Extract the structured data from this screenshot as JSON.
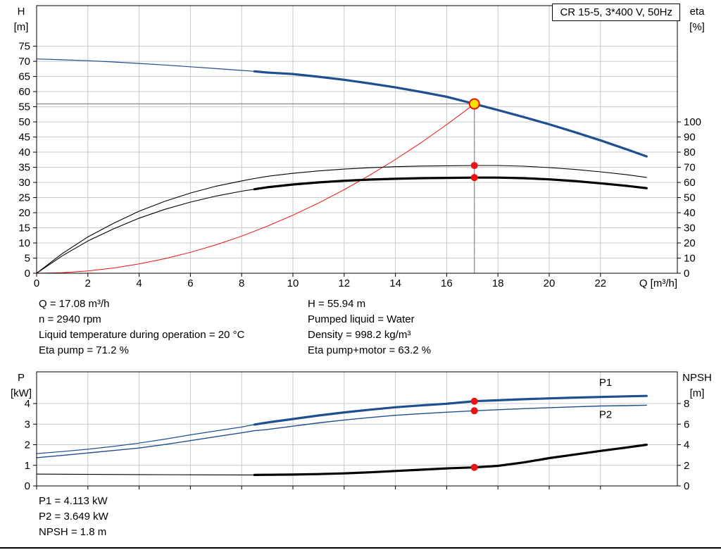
{
  "legend": {
    "label": "CR 15-5, 3*400 V, 50Hz"
  },
  "info_top": {
    "left": [
      "Q = 17.08 m³/h",
      "n = 2940 rpm",
      "Liquid temperature during operation = 20 °C",
      "Eta pump = 71.2 %"
    ],
    "right": [
      "H = 55.94 m",
      "Pumped liquid = Water",
      "Density = 998.2 kg/m³",
      "Eta pump+motor = 63.2 %"
    ]
  },
  "info_bottom": [
    "P1 = 4.113 kW",
    "P2 = 3.649 kW",
    "NPSH = 1.8 m"
  ],
  "colors": {
    "curve_blue": "#1d4f91",
    "curve_red": "#ee1111",
    "curve_black": "#000000",
    "grid": "#c9c9c9",
    "crosshair": "#8a8a8a",
    "marker_red": "#ee1111",
    "duty_point_fill": "#ffe000"
  },
  "chart_data": [
    {
      "type": "line",
      "title": "CR 15-5, 3*400 V, 50Hz",
      "xlabel": "Q [m³/h]",
      "ylabel_left": [
        "H",
        "[m]"
      ],
      "ylabel_right": [
        "eta",
        "[%]"
      ],
      "xlim": [
        0,
        25
      ],
      "ylim_left": [
        0,
        88.4
      ],
      "ylim_right": [
        0,
        176.8
      ],
      "x_ticks": [
        0,
        2,
        4,
        6,
        8,
        10,
        12,
        14,
        16,
        18,
        20,
        22
      ],
      "show_x_labels": true,
      "y_ticks_left": [
        0,
        5,
        10,
        15,
        20,
        25,
        30,
        35,
        40,
        45,
        50,
        55,
        60,
        65,
        70,
        75
      ],
      "y_ticks_right": [
        0,
        10,
        20,
        30,
        40,
        50,
        60,
        70,
        80,
        90,
        100
      ],
      "grid": true,
      "legend_position": "top-right",
      "crosshair": {
        "x": 17.08,
        "y": 55.94,
        "axis": "left"
      },
      "series": [
        {
          "name": "head-curve-thin",
          "axis": "left",
          "color": "#1d4f91",
          "width": 1.2,
          "x": [
            0,
            1,
            2,
            3,
            4,
            5,
            6,
            7,
            8,
            8.5
          ],
          "y": [
            70.8,
            70.5,
            70.2,
            69.8,
            69.3,
            68.8,
            68.2,
            67.6,
            67.0,
            66.7
          ]
        },
        {
          "name": "head-curve",
          "axis": "left",
          "color": "#1d4f91",
          "width": 3.2,
          "x": [
            8.5,
            9,
            10,
            11,
            12,
            13,
            14,
            15,
            16,
            17.08,
            18,
            19,
            20,
            21,
            22,
            23,
            23.8
          ],
          "y": [
            66.7,
            66.3,
            65.8,
            64.9,
            63.9,
            62.7,
            61.4,
            59.9,
            58.3,
            55.94,
            53.9,
            51.6,
            49.2,
            46.6,
            43.9,
            41.0,
            38.6
          ]
        },
        {
          "name": "system-curve",
          "axis": "left",
          "color": "#ee1111",
          "width": 1,
          "x": [
            0,
            1,
            2,
            3,
            4,
            5,
            6,
            7,
            8,
            9,
            10,
            11,
            12,
            13,
            14,
            15,
            16,
            17,
            17.08
          ],
          "y": [
            0,
            0.19,
            0.77,
            1.73,
            3.07,
            4.8,
            6.9,
            9.39,
            12.27,
            15.53,
            19.18,
            23.2,
            27.61,
            32.4,
            37.58,
            43.14,
            49.09,
            55.42,
            55.94
          ]
        },
        {
          "name": "eta-pump-curve",
          "axis": "right",
          "color": "#000000",
          "width": 1.1,
          "x": [
            0,
            1,
            2,
            3,
            4,
            5,
            6,
            7,
            8,
            8.5,
            9,
            10,
            11,
            12,
            13,
            14,
            15,
            16,
            17.08,
            18,
            19,
            20,
            21,
            22,
            23,
            23.8
          ],
          "y": [
            0,
            13,
            24,
            33,
            41,
            47.5,
            53,
            57.5,
            61,
            62.6,
            64,
            66,
            67.6,
            68.8,
            69.7,
            70.4,
            70.8,
            71.0,
            71.2,
            71.2,
            70.7,
            69.8,
            68.6,
            67.0,
            65.2,
            63.3
          ]
        },
        {
          "name": "eta-pump-motor-curve-thin",
          "axis": "right",
          "color": "#000000",
          "width": 1.1,
          "x": [
            0,
            1,
            2,
            3,
            4,
            5,
            6,
            7,
            8,
            8.5
          ],
          "y": [
            0,
            11.5,
            21.3,
            29.3,
            36.4,
            42.2,
            47.0,
            51.0,
            54.2,
            55.5
          ]
        },
        {
          "name": "eta-pump-motor-curve",
          "axis": "right",
          "color": "#000000",
          "width": 3.2,
          "x": [
            8.5,
            9,
            10,
            11,
            12,
            13,
            14,
            15,
            16,
            17.08,
            18,
            19,
            20,
            21,
            22,
            23,
            23.8
          ],
          "y": [
            55.5,
            56.8,
            58.6,
            60.0,
            61.1,
            61.9,
            62.4,
            62.8,
            63.0,
            63.2,
            63.2,
            62.8,
            62.0,
            60.9,
            59.4,
            57.8,
            56.2
          ]
        }
      ],
      "markers": [
        {
          "name": "duty-point",
          "x": 17.08,
          "y": 55.94,
          "axis": "left",
          "r": 7,
          "fill": "#ffe000",
          "stroke": "#ee1111",
          "interactable": true
        },
        {
          "name": "eta-pump-point",
          "x": 17.08,
          "y": 71.2,
          "axis": "right",
          "r": 5,
          "fill": "#ee1111"
        },
        {
          "name": "eta-pump-motor-point",
          "x": 17.08,
          "y": 63.2,
          "axis": "right",
          "r": 5,
          "fill": "#ee1111"
        }
      ],
      "annotations": []
    },
    {
      "type": "line",
      "title": "",
      "xlabel": "",
      "ylabel_left": [
        "P",
        "[kW]"
      ],
      "ylabel_right": [
        "NPSH",
        "[m]"
      ],
      "xlim": [
        0,
        25
      ],
      "ylim_left": [
        0,
        5.54
      ],
      "ylim_right": [
        0,
        11.08
      ],
      "x_ticks": [
        0,
        2,
        4,
        6,
        8,
        10,
        12,
        14,
        16,
        18,
        20,
        22
      ],
      "show_x_labels": false,
      "y_ticks_left": [
        0,
        1,
        2,
        3,
        4
      ],
      "y_ticks_right": [
        0,
        2,
        4,
        6,
        8
      ],
      "grid": true,
      "crosshair": null,
      "series": [
        {
          "name": "p1-curve-thin",
          "axis": "left",
          "color": "#1d4f91",
          "width": 1.2,
          "x": [
            0,
            1,
            2,
            3,
            4,
            5,
            6,
            7,
            8,
            8.5
          ],
          "y": [
            1.57,
            1.67,
            1.78,
            1.92,
            2.08,
            2.27,
            2.48,
            2.67,
            2.86,
            2.98
          ]
        },
        {
          "name": "p1-curve",
          "axis": "left",
          "color": "#1d4f91",
          "width": 3.2,
          "x": [
            8.5,
            9,
            10,
            11,
            12,
            13,
            14,
            15,
            16,
            17.08,
            18,
            19,
            20,
            21,
            22,
            23,
            23.8
          ],
          "y": [
            2.98,
            3.08,
            3.25,
            3.42,
            3.57,
            3.7,
            3.82,
            3.91,
            3.99,
            4.113,
            4.16,
            4.21,
            4.25,
            4.29,
            4.32,
            4.35,
            4.37
          ]
        },
        {
          "name": "p2-curve",
          "axis": "left",
          "color": "#1d4f91",
          "width": 1.4,
          "x": [
            0,
            1,
            2,
            3,
            4,
            5,
            6,
            7,
            8,
            8.5,
            9,
            10,
            11,
            12,
            13,
            14,
            15,
            16,
            17.08,
            18,
            19,
            20,
            21,
            22,
            23,
            23.8
          ],
          "y": [
            1.37,
            1.48,
            1.6,
            1.72,
            1.84,
            2.01,
            2.2,
            2.39,
            2.58,
            2.68,
            2.74,
            2.9,
            3.06,
            3.2,
            3.32,
            3.43,
            3.51,
            3.58,
            3.649,
            3.7,
            3.75,
            3.8,
            3.84,
            3.88,
            3.9,
            3.92
          ]
        },
        {
          "name": "npsh-curve-thin",
          "axis": "right",
          "color": "#000000",
          "width": 1.1,
          "x": [
            0,
            2,
            4,
            6,
            8,
            8.5
          ],
          "y": [
            1.15,
            1.12,
            1.1,
            1.08,
            1.07,
            1.07
          ]
        },
        {
          "name": "npsh-curve",
          "axis": "right",
          "color": "#000000",
          "width": 3.2,
          "x": [
            8.5,
            9,
            10,
            11,
            12,
            13,
            14,
            15,
            16,
            17.08,
            18,
            19,
            20,
            21,
            22,
            23,
            23.8
          ],
          "y": [
            1.07,
            1.08,
            1.1,
            1.15,
            1.22,
            1.32,
            1.45,
            1.57,
            1.7,
            1.8,
            1.95,
            2.28,
            2.7,
            3.05,
            3.4,
            3.72,
            4.0
          ]
        }
      ],
      "markers": [
        {
          "name": "p1-point",
          "x": 17.08,
          "y": 4.113,
          "axis": "left",
          "r": 5,
          "fill": "#ee1111"
        },
        {
          "name": "p2-point",
          "x": 17.08,
          "y": 3.649,
          "axis": "left",
          "r": 5,
          "fill": "#ee1111"
        },
        {
          "name": "npsh-point",
          "x": 17.08,
          "y": 1.8,
          "axis": "right",
          "r": 5,
          "fill": "#ee1111"
        }
      ],
      "annotations": [
        {
          "text": "P1",
          "x": 22.2,
          "y": 4.85,
          "axis": "left",
          "color": "#1d4f91"
        },
        {
          "text": "P2",
          "x": 22.2,
          "y": 3.3,
          "axis": "left",
          "color": "#1d4f91"
        }
      ]
    }
  ]
}
